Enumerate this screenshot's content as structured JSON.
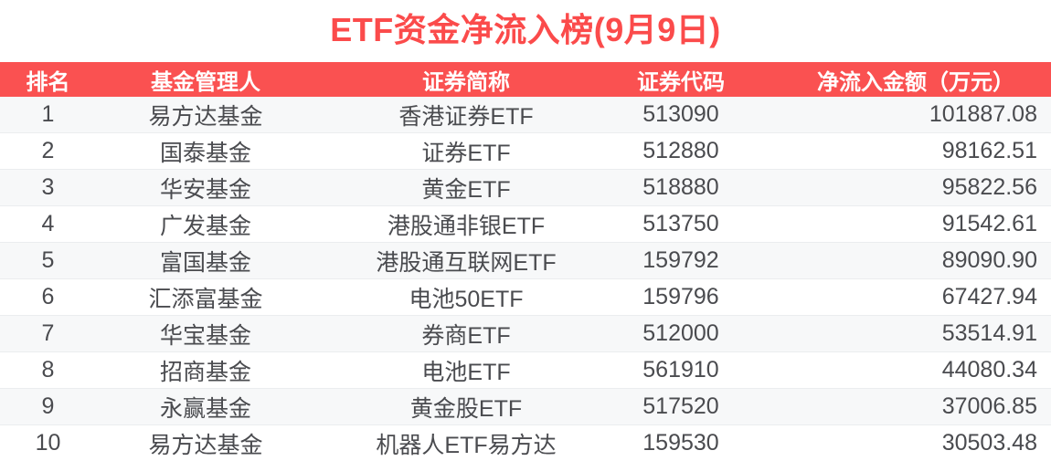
{
  "colors": {
    "accent_red": "#fa5151",
    "title_red": "#fb4b4b",
    "row_stripe": "#f7f8f9",
    "body_text": "#4a4b4f"
  },
  "chart_data": {
    "type": "table",
    "title": "ETF资金净流入榜(9月9日)",
    "columns": [
      "排名",
      "基金管理人",
      "证券简称",
      "证券代码",
      "净流入金额（万元）"
    ],
    "rows": [
      {
        "rank": "1",
        "manager": "易方达基金",
        "name": "香港证券ETF",
        "code": "513090",
        "amount": "101887.08"
      },
      {
        "rank": "2",
        "manager": "国泰基金",
        "name": "证券ETF",
        "code": "512880",
        "amount": "98162.51"
      },
      {
        "rank": "3",
        "manager": "华安基金",
        "name": "黄金ETF",
        "code": "518880",
        "amount": "95822.56"
      },
      {
        "rank": "4",
        "manager": "广发基金",
        "name": "港股通非银ETF",
        "code": "513750",
        "amount": "91542.61"
      },
      {
        "rank": "5",
        "manager": "富国基金",
        "name": "港股通互联网ETF",
        "code": "159792",
        "amount": "89090.90"
      },
      {
        "rank": "6",
        "manager": "汇添富基金",
        "name": "电池50ETF",
        "code": "159796",
        "amount": "67427.94"
      },
      {
        "rank": "7",
        "manager": "华宝基金",
        "name": "券商ETF",
        "code": "512000",
        "amount": "53514.91"
      },
      {
        "rank": "8",
        "manager": "招商基金",
        "name": "电池ETF",
        "code": "561910",
        "amount": "44080.34"
      },
      {
        "rank": "9",
        "manager": "永赢基金",
        "name": "黄金股ETF",
        "code": "517520",
        "amount": "37006.85"
      },
      {
        "rank": "10",
        "manager": "易方达基金",
        "name": "机器人ETF易方达",
        "code": "159530",
        "amount": "30503.48"
      }
    ]
  }
}
